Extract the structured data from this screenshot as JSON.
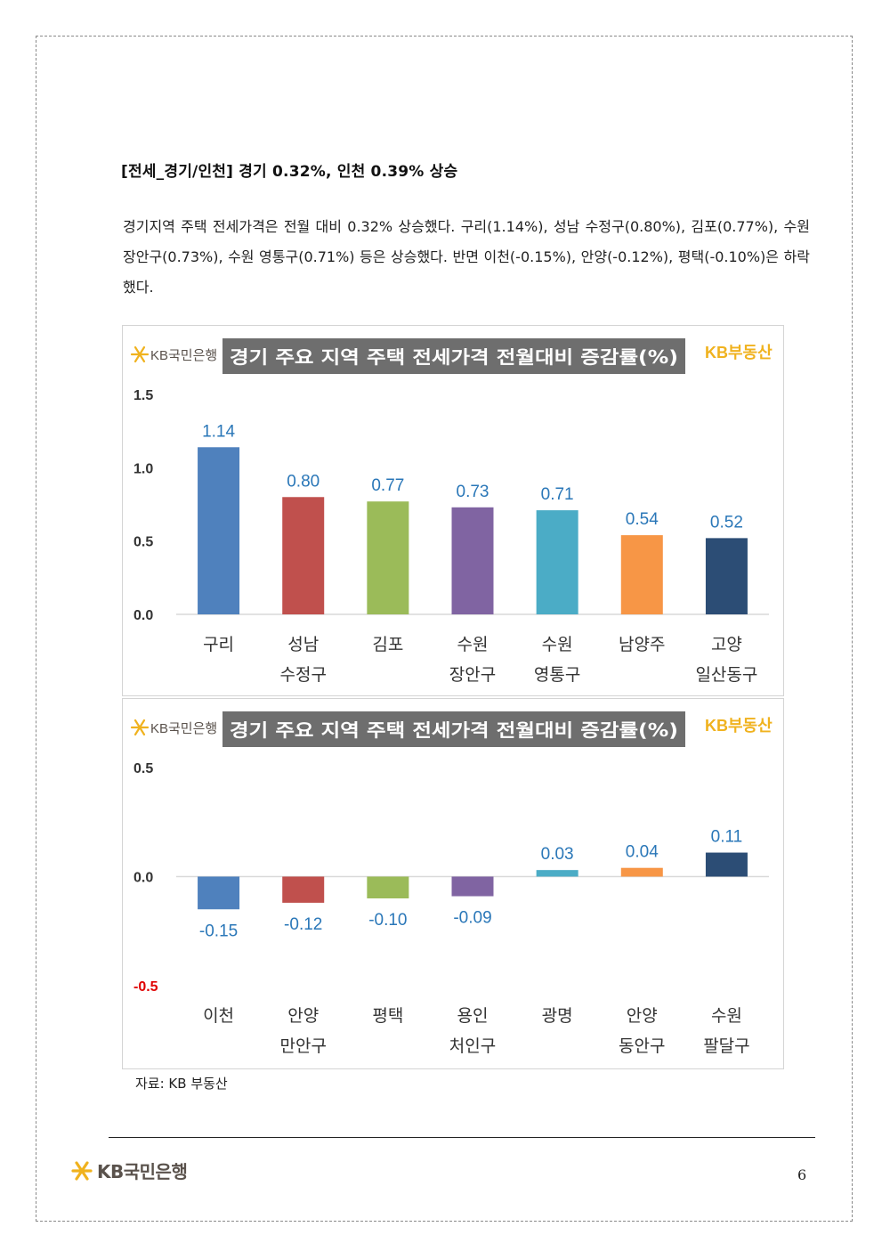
{
  "heading": "[전세_경기/인천] 경기 0.32%, 인천 0.39% 상승",
  "paragraph": "경기지역 주택 전세가격은 전월 대비 0.32% 상승했다. 구리(1.14%), 성남 수정구(0.80%), 김포(0.77%), 수원 장안구(0.73%), 수원 영통구(0.71%) 등은 상승했다. 반면 이천(-0.15%), 안양(-0.12%), 평택(-0.10%)은 하락했다.",
  "source": "자료: KB 부동산",
  "footer": {
    "logo_text": "KB국민은행",
    "page_number": "6"
  },
  "brand_colors": {
    "kb_gold": "#f0b21e",
    "kb_gray": "#5a524c",
    "title_bg": "#6e6e6e",
    "value_label": "#2a77b8",
    "negative_tick": "#e00000"
  },
  "chart_data": [
    {
      "type": "bar",
      "title": "경기 주요 지역 주택 전세가격 전월대비 증감률(%)",
      "logo_left": "KB국민은행",
      "logo_right": "KB부동산",
      "categories": [
        [
          "구리"
        ],
        [
          "성남",
          "수정구"
        ],
        [
          "김포"
        ],
        [
          "수원",
          "장안구"
        ],
        [
          "수원",
          "영통구"
        ],
        [
          "남양주"
        ],
        [
          "고양",
          "일산동구"
        ]
      ],
      "values": [
        1.14,
        0.8,
        0.77,
        0.73,
        0.71,
        0.54,
        0.52
      ],
      "value_labels": [
        "1.14",
        "0.80",
        "0.77",
        "0.73",
        "0.71",
        "0.54",
        "0.52"
      ],
      "colors": [
        "#4f81bd",
        "#c0504d",
        "#9bbb59",
        "#8064a2",
        "#4bacc6",
        "#f79646",
        "#2c4d75"
      ],
      "ylim": [
        0,
        1.5
      ],
      "yticks": [
        {
          "value": 0,
          "label": "0.0"
        },
        {
          "value": 0.5,
          "label": "0.5"
        },
        {
          "value": 1.0,
          "label": "1.0"
        },
        {
          "value": 1.5,
          "label": "1.5"
        }
      ],
      "xlabel": "",
      "ylabel": "",
      "grid": false
    },
    {
      "type": "bar",
      "title": "경기 주요 지역 주택 전세가격 전월대비 증감률(%)",
      "logo_left": "KB국민은행",
      "logo_right": "KB부동산",
      "categories": [
        [
          "이천"
        ],
        [
          "안양",
          "만안구"
        ],
        [
          "평택"
        ],
        [
          "용인",
          "처인구"
        ],
        [
          "광명"
        ],
        [
          "안양",
          "동안구"
        ],
        [
          "수원",
          "팔달구"
        ]
      ],
      "values": [
        -0.15,
        -0.12,
        -0.1,
        -0.09,
        0.03,
        0.04,
        0.11
      ],
      "value_labels": [
        "-0.15",
        "-0.12",
        "-0.10",
        "-0.09",
        "0.03",
        "0.04",
        "0.11"
      ],
      "colors": [
        "#4f81bd",
        "#c0504d",
        "#9bbb59",
        "#8064a2",
        "#4bacc6",
        "#f79646",
        "#2c4d75"
      ],
      "ylim": [
        -0.5,
        0.5
      ],
      "yticks": [
        {
          "value": -0.5,
          "label": "-0.5",
          "color": "#e00000"
        },
        {
          "value": 0,
          "label": "0.0"
        },
        {
          "value": 0.5,
          "label": "0.5"
        }
      ],
      "xlabel": "",
      "ylabel": "",
      "grid": false
    }
  ]
}
